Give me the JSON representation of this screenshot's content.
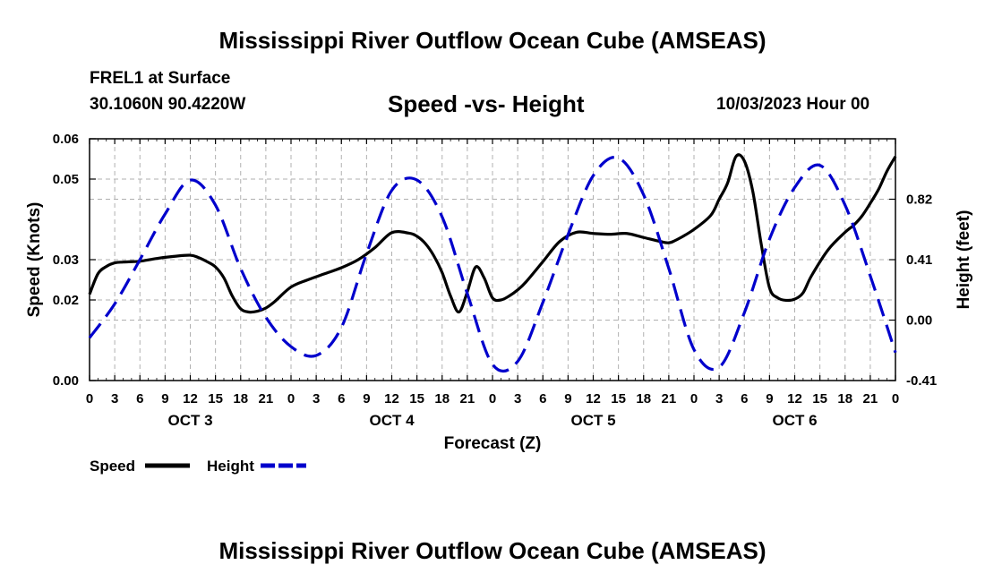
{
  "page": {
    "title_top": "Mississippi River Outflow Ocean Cube (AMSEAS)",
    "title_bottom": "Mississippi River Outflow Ocean Cube (AMSEAS)",
    "station": "FREL1 at Surface",
    "coords": "30.1060N  90.4220W",
    "datetime": "10/03/2023 Hour 00"
  },
  "colors": {
    "speed": "#000000",
    "height": "#0000cc",
    "grid": "#b0b0b0"
  },
  "chart_data": {
    "type": "line",
    "title": "Speed -vs- Height",
    "xlabel": "Forecast (Z)",
    "ylabel_left": "Speed (Knots)",
    "ylabel_right": "Height (feet)",
    "x_unit": "hours from 10/03/2023 00Z",
    "x_range": [
      0,
      96
    ],
    "x_tick_values": [
      0,
      3,
      6,
      9,
      12,
      15,
      18,
      21,
      24,
      27,
      30,
      33,
      36,
      39,
      42,
      45,
      48,
      51,
      54,
      57,
      60,
      63,
      66,
      69,
      72,
      75,
      78,
      81,
      84,
      87,
      90,
      93,
      96
    ],
    "x_tick_labels": [
      "0",
      "3",
      "6",
      "9",
      "12",
      "15",
      "18",
      "21",
      "0",
      "3",
      "6",
      "9",
      "12",
      "15",
      "18",
      "21",
      "0",
      "3",
      "6",
      "9",
      "12",
      "15",
      "18",
      "21",
      "0",
      "3",
      "6",
      "9",
      "12",
      "15",
      "18",
      "21",
      "0"
    ],
    "day_labels": [
      {
        "text": "OCT 3",
        "x": 12
      },
      {
        "text": "OCT 4",
        "x": 36
      },
      {
        "text": "OCT 5",
        "x": 60
      },
      {
        "text": "OCT 6",
        "x": 84
      }
    ],
    "y_left": {
      "range": [
        0.0,
        0.06
      ],
      "tick_values": [
        0.0,
        0.02,
        0.03,
        0.05,
        0.06
      ],
      "tick_labels": [
        "0.00",
        "0.02",
        "0.03",
        "0.05",
        "0.06"
      ]
    },
    "y_right": {
      "range": [
        -0.41,
        1.23
      ],
      "tick_values": [
        -0.41,
        0.0,
        0.41,
        0.82
      ],
      "tick_labels": [
        "-0.41",
        "0.00",
        "0.41",
        "0.82"
      ]
    },
    "series": [
      {
        "name": "Speed",
        "axis": "left",
        "style": "solid",
        "x": [
          0,
          1,
          2,
          3,
          4,
          5,
          6,
          8,
          10,
          12,
          13,
          14,
          15,
          16,
          17,
          18,
          19,
          20,
          21,
          22,
          24,
          26,
          28,
          30,
          32,
          34,
          36,
          38,
          39,
          40,
          41,
          42,
          43,
          44,
          45,
          46,
          47,
          48,
          49,
          50,
          51,
          52,
          54,
          56,
          58,
          60,
          62,
          64,
          66,
          68,
          69,
          70,
          72,
          74,
          75,
          76,
          77,
          78,
          79,
          80,
          81,
          82,
          83,
          84,
          85,
          86,
          88,
          90,
          91,
          92,
          93,
          94,
          95,
          96
        ],
        "y": [
          0.0214,
          0.0265,
          0.0283,
          0.0292,
          0.0294,
          0.0295,
          0.0296,
          0.0303,
          0.0308,
          0.0311,
          0.0305,
          0.0295,
          0.0282,
          0.0255,
          0.021,
          0.0178,
          0.017,
          0.0172,
          0.018,
          0.0195,
          0.0232,
          0.025,
          0.0265,
          0.028,
          0.03,
          0.033,
          0.0367,
          0.0366,
          0.0358,
          0.034,
          0.031,
          0.0268,
          0.021,
          0.017,
          0.022,
          0.0282,
          0.0255,
          0.0205,
          0.02,
          0.021,
          0.0225,
          0.0245,
          0.0295,
          0.0345,
          0.0368,
          0.0365,
          0.0363,
          0.0365,
          0.0355,
          0.0345,
          0.0342,
          0.035,
          0.0375,
          0.041,
          0.045,
          0.049,
          0.0556,
          0.0545,
          0.047,
          0.034,
          0.023,
          0.0205,
          0.0199,
          0.0202,
          0.0218,
          0.026,
          0.0325,
          0.0368,
          0.0385,
          0.0408,
          0.044,
          0.0475,
          0.052,
          0.0556
        ]
      },
      {
        "name": "Height",
        "axis": "right",
        "style": "dashed",
        "x": [
          0,
          3,
          6,
          9,
          12,
          15,
          18,
          21,
          24,
          27,
          30,
          33,
          36,
          39,
          42,
          45,
          48,
          51,
          54,
          57,
          60,
          63,
          66,
          69,
          72,
          75,
          78,
          81,
          84,
          87,
          90,
          93,
          96
        ],
        "y": [
          -0.12,
          0.11,
          0.41,
          0.72,
          0.95,
          0.78,
          0.35,
          0.02,
          -0.18,
          -0.24,
          -0.05,
          0.45,
          0.88,
          0.95,
          0.7,
          0.18,
          -0.3,
          -0.28,
          0.12,
          0.58,
          0.98,
          1.1,
          0.85,
          0.35,
          -0.2,
          -0.32,
          0.05,
          0.55,
          0.9,
          1.05,
          0.78,
          0.3,
          -0.22
        ]
      }
    ],
    "legend": [
      {
        "label": "Speed",
        "style": "solid"
      },
      {
        "label": "Height",
        "style": "dashed"
      }
    ],
    "grid": true
  }
}
